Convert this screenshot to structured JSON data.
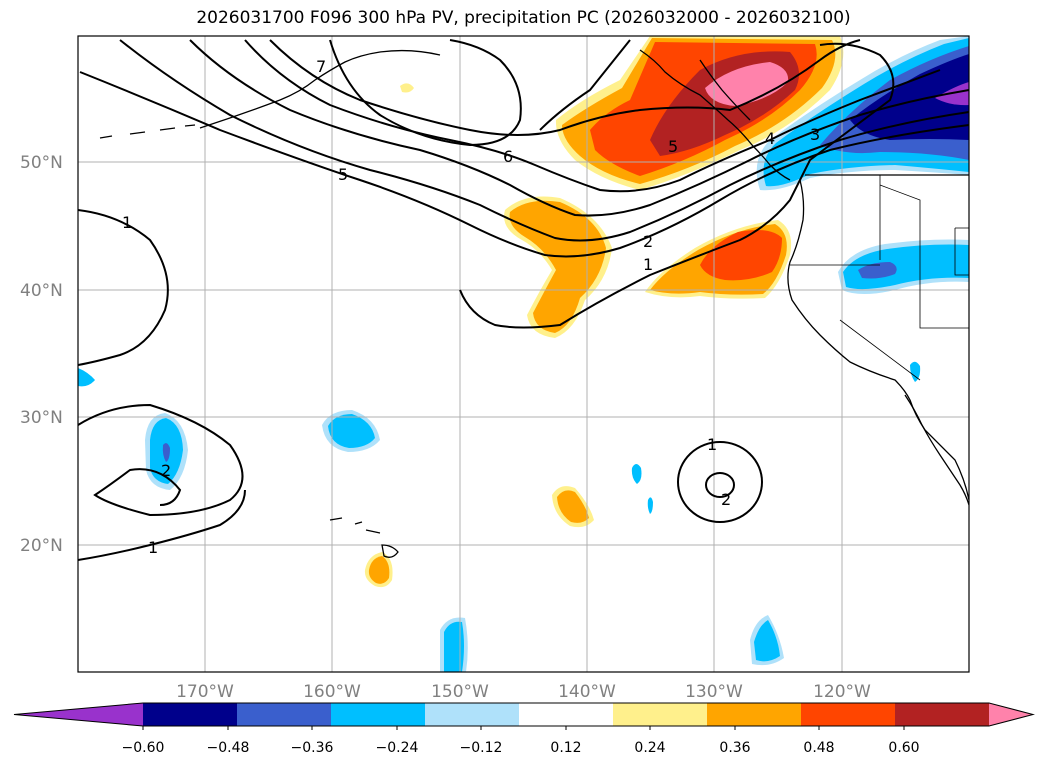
{
  "title": "2026031700 F096 300 hPa PV, precipitation PC (2026032000 - 2026032100)",
  "map": {
    "projection": "PlateCarree",
    "lon_range": [
      180,
      110
    ],
    "lat_range": [
      10,
      60
    ],
    "lat_ticks": [
      "20°N",
      "30°N",
      "40°N",
      "50°N"
    ],
    "lon_ticks": [
      "170°W",
      "160°W",
      "150°W",
      "140°W",
      "130°W",
      "120°W"
    ],
    "gridlines": true,
    "pv_contour_labels": [
      "1",
      "1",
      "1",
      "1",
      "2",
      "2",
      "2",
      "3",
      "4",
      "5",
      "5",
      "6",
      "7"
    ]
  },
  "colorbar": {
    "ticks": [
      "−0.60",
      "−0.48",
      "−0.36",
      "−0.24",
      "−0.12",
      "0.12",
      "0.24",
      "0.36",
      "0.48",
      "0.60"
    ],
    "colors": [
      "#9932cc",
      "#00008b",
      "#3a5fcd",
      "#00bfff",
      "#afe1fa",
      "#ffffff",
      "#fff08c",
      "#ffa500",
      "#ff4500",
      "#b22222",
      "#ff82ab"
    ],
    "extend": "both"
  }
}
